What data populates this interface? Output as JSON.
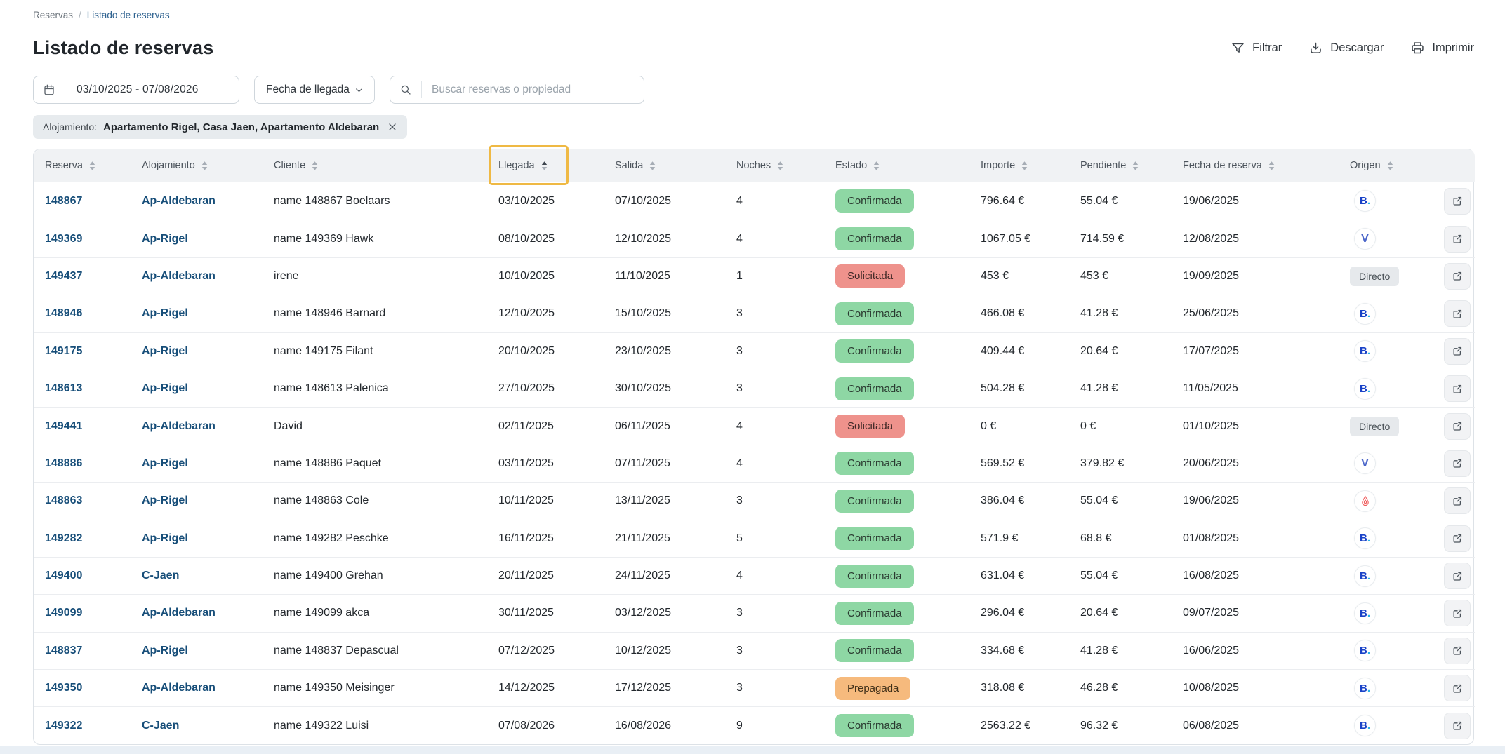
{
  "breadcrumb": {
    "home": "Reservas",
    "separator": "/",
    "current": "Listado de reservas"
  },
  "header": {
    "title": "Listado de reservas",
    "actions": [
      {
        "label": "Filtrar",
        "icon": "filter-icon"
      },
      {
        "label": "Descargar",
        "icon": "download-icon"
      },
      {
        "label": "Imprimir",
        "icon": "printer-icon"
      }
    ]
  },
  "filters": {
    "date_range": "03/10/2025 - 07/08/2026",
    "date_field": "Fecha de llegada",
    "search_placeholder": "Buscar reservas o propiedad",
    "chip_label": "Alojamiento:",
    "chip_value": "Apartamento Rigel, Casa Jaen, Apartamento Aldebaran"
  },
  "table": {
    "columns": [
      "Reserva",
      "Alojamiento",
      "Cliente",
      "Llegada",
      "Salida",
      "Noches",
      "Estado",
      "Importe",
      "Pendiente",
      "Fecha de reserva",
      "Origen"
    ],
    "sorted_column": "Llegada",
    "sort_direction": "asc",
    "rows": [
      {
        "reserva": "148867",
        "alojamiento": "Ap-Aldebaran",
        "cliente": "name 148867 Boelaars",
        "llegada": "03/10/2025",
        "salida": "07/10/2025",
        "noches": "4",
        "estado": "Confirmada",
        "importe": "796.64 €",
        "pendiente": "55.04 €",
        "fecha_reserva": "19/06/2025",
        "origen": "booking"
      },
      {
        "reserva": "149369",
        "alojamiento": "Ap-Rigel",
        "cliente": "name 149369 Hawk",
        "llegada": "08/10/2025",
        "salida": "12/10/2025",
        "noches": "4",
        "estado": "Confirmada",
        "importe": "1067.05 €",
        "pendiente": "714.59 €",
        "fecha_reserva": "12/08/2025",
        "origen": "vrbo"
      },
      {
        "reserva": "149437",
        "alojamiento": "Ap-Aldebaran",
        "cliente": "irene",
        "llegada": "10/10/2025",
        "salida": "11/10/2025",
        "noches": "1",
        "estado": "Solicitada",
        "importe": "453 €",
        "pendiente": "453 €",
        "fecha_reserva": "19/09/2025",
        "origen": "directo"
      },
      {
        "reserva": "148946",
        "alojamiento": "Ap-Rigel",
        "cliente": "name 148946 Barnard",
        "llegada": "12/10/2025",
        "salida": "15/10/2025",
        "noches": "3",
        "estado": "Confirmada",
        "importe": "466.08 €",
        "pendiente": "41.28 €",
        "fecha_reserva": "25/06/2025",
        "origen": "booking"
      },
      {
        "reserva": "149175",
        "alojamiento": "Ap-Rigel",
        "cliente": "name 149175 Filant",
        "llegada": "20/10/2025",
        "salida": "23/10/2025",
        "noches": "3",
        "estado": "Confirmada",
        "importe": "409.44 €",
        "pendiente": "20.64 €",
        "fecha_reserva": "17/07/2025",
        "origen": "booking"
      },
      {
        "reserva": "148613",
        "alojamiento": "Ap-Rigel",
        "cliente": "name 148613 Palenica",
        "llegada": "27/10/2025",
        "salida": "30/10/2025",
        "noches": "3",
        "estado": "Confirmada",
        "importe": "504.28 €",
        "pendiente": "41.28 €",
        "fecha_reserva": "11/05/2025",
        "origen": "booking"
      },
      {
        "reserva": "149441",
        "alojamiento": "Ap-Aldebaran",
        "cliente": "David",
        "llegada": "02/11/2025",
        "salida": "06/11/2025",
        "noches": "4",
        "estado": "Solicitada",
        "importe": "0 €",
        "pendiente": "0 €",
        "fecha_reserva": "01/10/2025",
        "origen": "directo"
      },
      {
        "reserva": "148886",
        "alojamiento": "Ap-Rigel",
        "cliente": "name 148886 Paquet",
        "llegada": "03/11/2025",
        "salida": "07/11/2025",
        "noches": "4",
        "estado": "Confirmada",
        "importe": "569.52 €",
        "pendiente": "379.82 €",
        "fecha_reserva": "20/06/2025",
        "origen": "vrbo"
      },
      {
        "reserva": "148863",
        "alojamiento": "Ap-Rigel",
        "cliente": "name 148863 Cole",
        "llegada": "10/11/2025",
        "salida": "13/11/2025",
        "noches": "3",
        "estado": "Confirmada",
        "importe": "386.04 €",
        "pendiente": "55.04 €",
        "fecha_reserva": "19/06/2025",
        "origen": "airbnb"
      },
      {
        "reserva": "149282",
        "alojamiento": "Ap-Rigel",
        "cliente": "name 149282 Peschke",
        "llegada": "16/11/2025",
        "salida": "21/11/2025",
        "noches": "5",
        "estado": "Confirmada",
        "importe": "571.9 €",
        "pendiente": "68.8 €",
        "fecha_reserva": "01/08/2025",
        "origen": "booking"
      },
      {
        "reserva": "149400",
        "alojamiento": "C-Jaen",
        "cliente": "name 149400 Grehan",
        "llegada": "20/11/2025",
        "salida": "24/11/2025",
        "noches": "4",
        "estado": "Confirmada",
        "importe": "631.04 €",
        "pendiente": "55.04 €",
        "fecha_reserva": "16/08/2025",
        "origen": "booking"
      },
      {
        "reserva": "149099",
        "alojamiento": "Ap-Aldebaran",
        "cliente": "name 149099 akca",
        "llegada": "30/11/2025",
        "salida": "03/12/2025",
        "noches": "3",
        "estado": "Confirmada",
        "importe": "296.04 €",
        "pendiente": "20.64 €",
        "fecha_reserva": "09/07/2025",
        "origen": "booking"
      },
      {
        "reserva": "148837",
        "alojamiento": "Ap-Rigel",
        "cliente": "name 148837 Depascual",
        "llegada": "07/12/2025",
        "salida": "10/12/2025",
        "noches": "3",
        "estado": "Confirmada",
        "importe": "334.68 €",
        "pendiente": "41.28 €",
        "fecha_reserva": "16/06/2025",
        "origen": "booking"
      },
      {
        "reserva": "149350",
        "alojamiento": "Ap-Aldebaran",
        "cliente": "name 149350 Meisinger",
        "llegada": "14/12/2025",
        "salida": "17/12/2025",
        "noches": "3",
        "estado": "Prepagada",
        "importe": "318.08 €",
        "pendiente": "46.28 €",
        "fecha_reserva": "10/08/2025",
        "origen": "booking"
      },
      {
        "reserva": "149322",
        "alojamiento": "C-Jaen",
        "cliente": "name 149322 Luisi",
        "llegada": "07/08/2026",
        "salida": "16/08/2026",
        "noches": "9",
        "estado": "Confirmada",
        "importe": "2563.22 €",
        "pendiente": "96.32 €",
        "fecha_reserva": "06/08/2025",
        "origen": "booking"
      }
    ]
  },
  "status_styles": {
    "Confirmada": "green",
    "Solicitada": "red",
    "Prepagada": "orange"
  },
  "origins": {
    "booking_letter": "B",
    "booking_dot": ".",
    "vrbo_letter": "V",
    "directo_label": "Directo",
    "airbnb": "airbnb-icon"
  },
  "colors": {
    "sort_highlight": "#efb944",
    "badge_green": "#8ed7a4",
    "badge_red": "#ee928c",
    "badge_orange": "#f6ba7d",
    "link_navy": "#174e79",
    "booking_blue": "#1a43c8",
    "booking_dot_blue": "#29b1e6",
    "vrbo_blue": "#4b66c9",
    "airbnb_coral": "#f05c5c"
  }
}
